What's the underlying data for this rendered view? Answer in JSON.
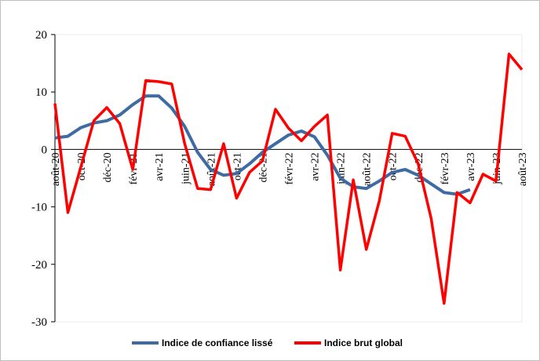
{
  "chart_data": {
    "type": "line",
    "categories": [
      "août-20",
      null,
      "oct-20",
      null,
      "déc-20",
      null,
      "févr-21",
      null,
      "avr-21",
      null,
      "juin-21",
      null,
      "août-21",
      null,
      "oct-21",
      null,
      "déc-21",
      null,
      "févr-22",
      null,
      "avr-22",
      null,
      "juin-22",
      null,
      "août-22",
      null,
      "oct-22",
      null,
      "déc-22",
      null,
      "févr-23",
      null,
      "avr-23",
      null,
      "juin-23",
      null,
      "août-23"
    ],
    "series": [
      {
        "name": "Indice de confiance lissé",
        "color": "#3f6ba3",
        "values": [
          2,
          2.3,
          3.8,
          4.6,
          5,
          6,
          7.8,
          9.3,
          9.3,
          7.2,
          4,
          -0.5,
          -3.5,
          -4.5,
          -4.2,
          -2.5,
          -0.5,
          1,
          2.5,
          3.2,
          2.2,
          -1,
          -5,
          -6.5,
          -6.8,
          -5.5,
          -4,
          -3.5,
          -4.5,
          -6,
          -7.5,
          -7.8,
          -7,
          null,
          null,
          null,
          null
        ]
      },
      {
        "name": "Indice brut global",
        "color": "#ff0000",
        "values": [
          8,
          -11,
          -3,
          5,
          7.3,
          4.5,
          -3.5,
          12,
          11.8,
          11.4,
          1,
          -6.8,
          -7,
          1,
          -8.5,
          -4,
          -2,
          7,
          3.7,
          1.5,
          4,
          6,
          -21,
          -5.3,
          -17.4,
          -9,
          2.8,
          2.3,
          -2.5,
          -12,
          -26.8,
          -7.5,
          -9.3,
          -4.3,
          -5.5,
          16.6,
          13.9
        ]
      }
    ],
    "ylim": [
      -30,
      20
    ],
    "yticks": [
      20,
      10,
      0,
      -10,
      -20,
      -30
    ],
    "legend": "bottom"
  }
}
